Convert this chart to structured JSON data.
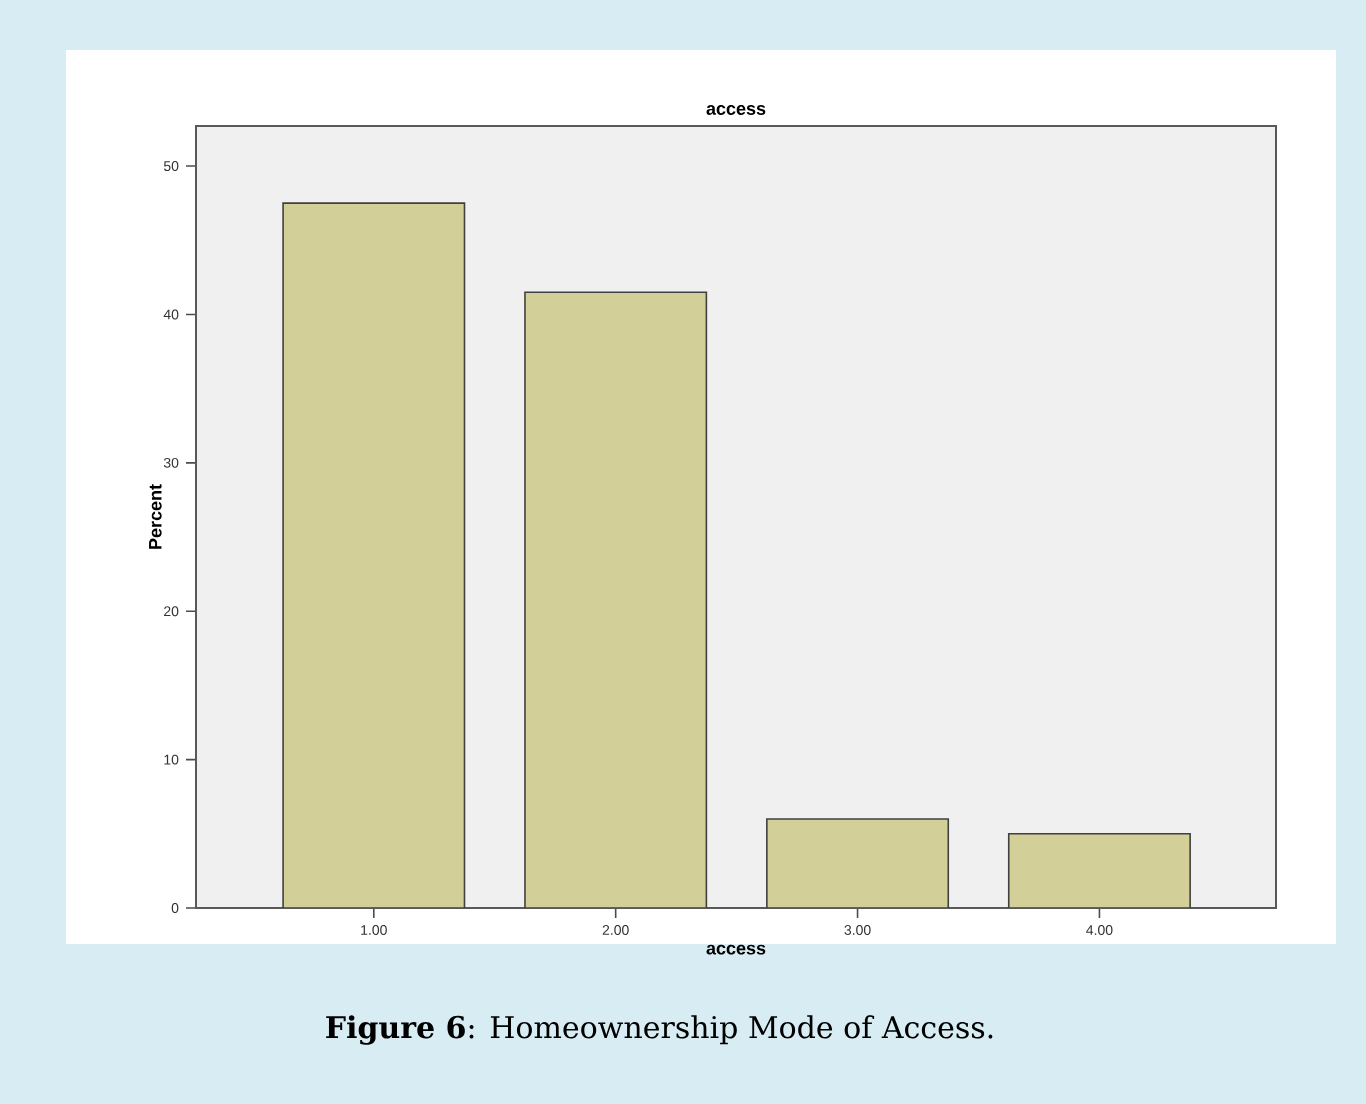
{
  "chart_data": {
    "type": "bar",
    "title": "access",
    "xlabel": "access",
    "ylabel": "Percent",
    "categories": [
      "1.00",
      "2.00",
      "3.00",
      "4.00"
    ],
    "values": [
      47.5,
      41.5,
      6.0,
      5.0
    ],
    "color": "#d3cf98",
    "ylim": [
      0,
      52.7
    ],
    "yticks": [
      0,
      10,
      20,
      30,
      40,
      50
    ],
    "annotations": [
      "**Figure 6**: Homeownership Mode of Access."
    ]
  }
}
